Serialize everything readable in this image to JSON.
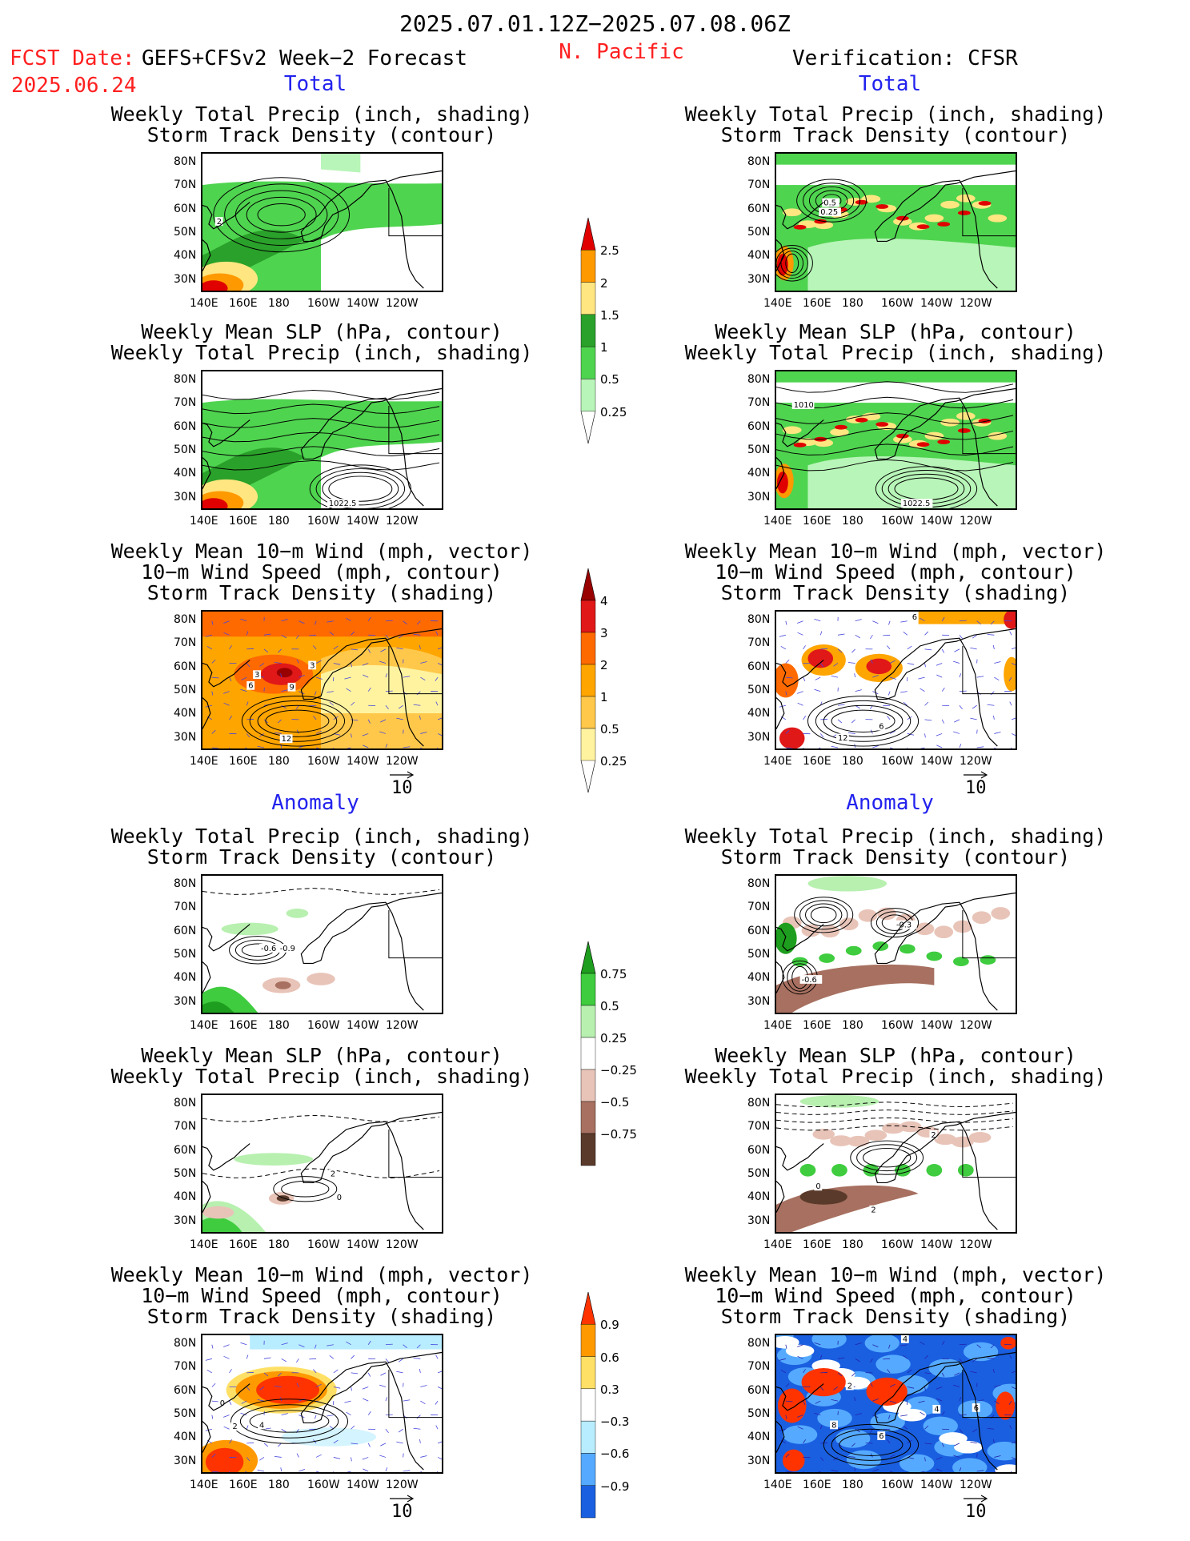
{
  "header": {
    "period": "2025.07.01.12Z−2025.07.08.06Z",
    "region": "N. Pacific",
    "fcst_label": "FCST Date:",
    "fcst_date": "2025.06.24",
    "model": "GEFS+CFSv2 Week−2 Forecast",
    "verification": "Verification: CFSR"
  },
  "sections": {
    "total": "Total",
    "anomaly": "Anomaly"
  },
  "axes": {
    "lat_labels": [
      "80N",
      "70N",
      "60N",
      "50N",
      "40N",
      "30N"
    ],
    "lon_labels": [
      "140E",
      "160E",
      "180",
      "160W",
      "140W",
      "120W"
    ]
  },
  "panels": {
    "precip_storm": [
      "Weekly Total Precip (inch, shading)",
      "Storm Track Density (contour)"
    ],
    "slp_precip": [
      "Weekly Mean SLP (hPa, contour)",
      "Weekly Total Precip (inch, shading)"
    ],
    "wind_storm": [
      "Weekly Mean 10−m Wind (mph, vector)",
      "10−m Wind Speed (mph, contour)",
      "Storm Track Density (shading)"
    ]
  },
  "vector_ref": "10",
  "contour_labels": {
    "fc_precip": [
      "2"
    ],
    "vf_precip": [
      "0.5",
      "0.25"
    ],
    "fc_slp": [
      "1022.5"
    ],
    "vf_slp": [
      "1010",
      "1022.5"
    ],
    "fc_wind": [
      "3",
      "6",
      "9",
      "3",
      "12"
    ],
    "vf_wind": [
      "6",
      "12",
      "6"
    ],
    "fca_precip": [
      "-0.6",
      "-0.9"
    ],
    "vfa_precip": [
      "-0.3",
      "-0.6"
    ],
    "fca_slp": [
      "2",
      "0"
    ],
    "vfa_slp": [
      "2",
      "0",
      "2"
    ],
    "fca_wind": [
      "0",
      "2",
      "4"
    ],
    "vfa_wind": [
      "4",
      "2",
      "8",
      "4",
      "6",
      "6"
    ]
  },
  "colorbars": {
    "precip_total": {
      "labels": [
        "2.5",
        "2",
        "1.5",
        "1",
        "0.5",
        "0.25"
      ],
      "colors": [
        "#e00000",
        "#ff9900",
        "#ffe680",
        "#2aa12a",
        "#4fd44f",
        "#b8f5b8"
      ]
    },
    "storm_total": {
      "labels": [
        "4",
        "3",
        "2",
        "1",
        "0.5",
        "0.25"
      ],
      "colors": [
        "#990000",
        "#e01818",
        "#ff6a00",
        "#ffa500",
        "#ffc84a",
        "#fff3a0"
      ]
    },
    "precip_anom": {
      "labels": [
        "0.75",
        "0.5",
        "0.25",
        "−0.25",
        "−0.5",
        "−0.75"
      ],
      "colors": [
        "#1e9e1e",
        "#3fcc3f",
        "#b8f0b0",
        "#ffffff",
        "#e8c4b8",
        "#a77060",
        "#5a3a2a"
      ]
    },
    "storm_anom": {
      "labels": [
        "0.9",
        "0.6",
        "0.3",
        "−0.3",
        "−0.6",
        "−0.9"
      ],
      "colors": [
        "#ff3300",
        "#ff9900",
        "#ffe066",
        "#ffffff",
        "#b8ecff",
        "#55aaff",
        "#1a5fe0"
      ]
    }
  }
}
